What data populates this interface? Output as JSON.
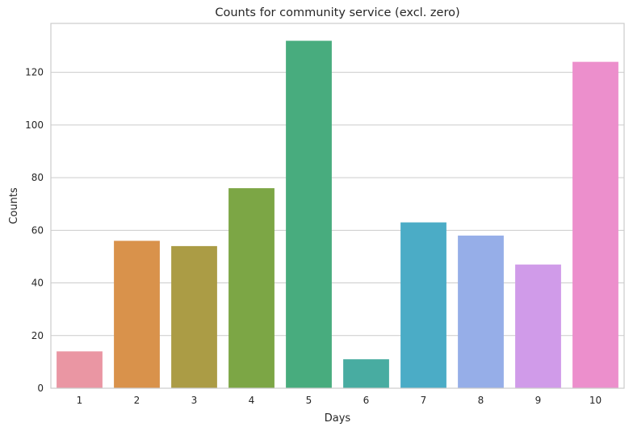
{
  "chart_data": {
    "type": "bar",
    "title": "Counts for community service (excl. zero)",
    "xlabel": "Days",
    "ylabel": "Counts",
    "categories": [
      "1",
      "2",
      "3",
      "4",
      "5",
      "6",
      "7",
      "8",
      "9",
      "10"
    ],
    "values": [
      14,
      56,
      54,
      76,
      132,
      11,
      63,
      58,
      47,
      124
    ],
    "colors": [
      "#ea96a3",
      "#d9924b",
      "#ab9c45",
      "#7ca645",
      "#48ac7e",
      "#48aca1",
      "#4bacc6",
      "#96aee8",
      "#d09be9",
      "#ec8fcc"
    ],
    "ylim": [
      0,
      138.6
    ],
    "yticks": [
      0,
      20,
      40,
      60,
      80,
      100,
      120
    ],
    "grid": true,
    "legend": "none"
  }
}
